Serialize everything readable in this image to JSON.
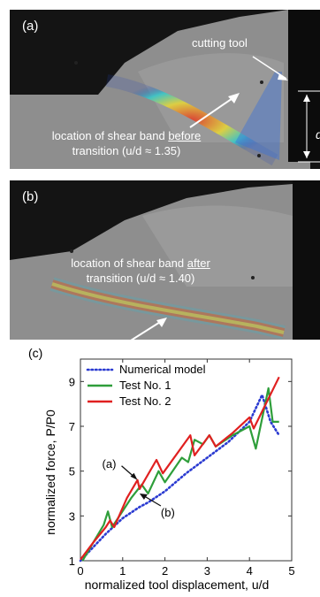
{
  "figure": {
    "panels": [
      {
        "label": "(a)",
        "tool_label": "cutting tool",
        "depth_symbol": "d",
        "caption_line1_prefix": "location of shear band ",
        "caption_line1_emph": "before",
        "caption_line2": "transition (u/d ≈ 1.35)"
      },
      {
        "label": "(b)",
        "caption_line1_prefix": "location of shear band ",
        "caption_line1_emph": "after",
        "caption_line2": "transition (u/d ≈ 1.40)"
      }
    ]
  },
  "chart_data": {
    "type": "line",
    "panel_label": "(c)",
    "xlabel": "normalized tool displacement, u/d",
    "ylabel": "normalized force, P/P0",
    "xlim": [
      0,
      5
    ],
    "ylim": [
      1,
      10
    ],
    "xticks": [
      0,
      1,
      2,
      3,
      4,
      5
    ],
    "yticks": [
      1,
      3,
      5,
      7,
      9
    ],
    "legend_position": "top-left",
    "annotations": [
      {
        "label": "(a)",
        "x": 1.35,
        "y": 4.6
      },
      {
        "label": "(b)",
        "x": 1.4,
        "y": 4.0
      }
    ],
    "series": [
      {
        "name": "Numerical model",
        "color": "#2b3bd1",
        "style": "dotted",
        "points": [
          [
            0,
            1.0
          ],
          [
            0.3,
            1.6
          ],
          [
            0.6,
            2.2
          ],
          [
            1.0,
            2.9
          ],
          [
            1.4,
            3.4
          ],
          [
            1.6,
            3.6
          ],
          [
            2.0,
            4.1
          ],
          [
            2.5,
            4.9
          ],
          [
            3.0,
            5.6
          ],
          [
            3.5,
            6.3
          ],
          [
            4.0,
            7.2
          ],
          [
            4.3,
            8.4
          ],
          [
            4.5,
            7.2
          ],
          [
            4.7,
            6.6
          ]
        ]
      },
      {
        "name": "Test No. 1",
        "color": "#2e9e3a",
        "style": "solid",
        "points": [
          [
            0.05,
            1.0
          ],
          [
            0.3,
            1.8
          ],
          [
            0.55,
            2.6
          ],
          [
            0.65,
            3.2
          ],
          [
            0.75,
            2.5
          ],
          [
            1.2,
            3.8
          ],
          [
            1.45,
            4.4
          ],
          [
            1.6,
            4.0
          ],
          [
            1.85,
            5.0
          ],
          [
            2.0,
            4.5
          ],
          [
            2.4,
            5.6
          ],
          [
            2.55,
            5.4
          ],
          [
            2.7,
            6.4
          ],
          [
            2.9,
            6.2
          ],
          [
            3.05,
            6.6
          ],
          [
            3.2,
            6.1
          ],
          [
            3.6,
            6.6
          ],
          [
            4.0,
            7.0
          ],
          [
            4.15,
            6.0
          ],
          [
            4.45,
            8.7
          ],
          [
            4.55,
            7.2
          ],
          [
            4.7,
            7.2
          ]
        ]
      },
      {
        "name": "Test No. 2",
        "color": "#e02020",
        "style": "solid",
        "points": [
          [
            0.0,
            1.05
          ],
          [
            0.3,
            1.8
          ],
          [
            0.6,
            2.5
          ],
          [
            0.7,
            2.8
          ],
          [
            0.8,
            2.5
          ],
          [
            1.1,
            3.8
          ],
          [
            1.35,
            4.6
          ],
          [
            1.4,
            4.2
          ],
          [
            1.8,
            5.5
          ],
          [
            1.95,
            4.9
          ],
          [
            2.6,
            6.6
          ],
          [
            2.7,
            5.7
          ],
          [
            3.05,
            6.6
          ],
          [
            3.2,
            6.1
          ],
          [
            3.6,
            6.7
          ],
          [
            4.0,
            7.4
          ],
          [
            4.1,
            6.9
          ],
          [
            4.7,
            9.2
          ]
        ]
      }
    ]
  }
}
